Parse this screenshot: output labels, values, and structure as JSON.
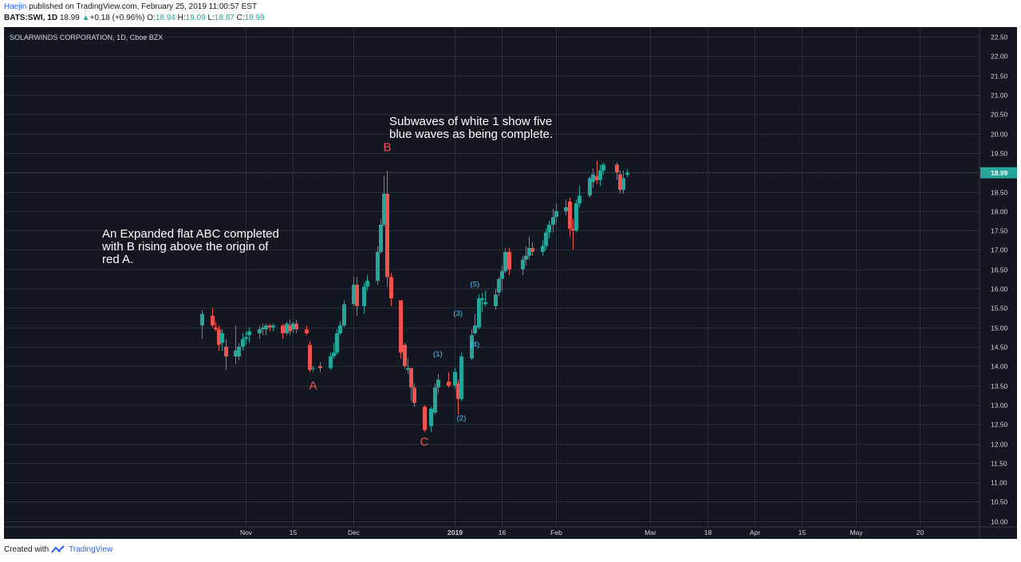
{
  "header": {
    "author": "Haejin",
    "published": "published on TradingView.com, February 25, 2019 11:00:57 EST",
    "symbol": "BATS:SWI, 1D",
    "last": "18.99",
    "change_arrow": "▲",
    "change": "+0.18 (+0.96%)",
    "o_label": "O:",
    "o_value": "18.94",
    "h_label": "H:",
    "h_value": "19.09",
    "l_label": "L:",
    "l_value": "18.87",
    "c_label": "C:",
    "c_value": "18.99"
  },
  "footer": {
    "created_with": "Created with",
    "brand": "TradingView"
  },
  "colors": {
    "background": "#131722",
    "up": "#26a69a",
    "down": "#ef5350",
    "grid": "#2a2e39",
    "wave_red": "#ef5350",
    "wave_blue": "#4fc3f7",
    "text": "#d1d4dc"
  },
  "chart_data": {
    "type": "candlestick",
    "title": "SOLARWINDS CORPORATION, 1D, Cboe BZX",
    "current_price": 18.99,
    "ylim": [
      9.85,
      22.75
    ],
    "y_ticks": [
      10.0,
      10.5,
      11.0,
      11.5,
      12.0,
      12.5,
      13.0,
      13.5,
      14.0,
      14.5,
      15.0,
      15.5,
      16.0,
      16.5,
      17.0,
      17.5,
      18.0,
      18.5,
      19.0,
      19.5,
      20.0,
      20.5,
      21.0,
      21.5,
      22.0,
      22.5
    ],
    "x_ticks": [
      {
        "label": "Nov",
        "date": "2018-11-01",
        "bold": false
      },
      {
        "label": "15",
        "date": "2018-11-15",
        "bold": false
      },
      {
        "label": "Dec",
        "date": "2018-12-03",
        "bold": false
      },
      {
        "label": "2019",
        "date": "2019-01-02",
        "bold": true
      },
      {
        "label": "16",
        "date": "2019-01-16",
        "bold": false
      },
      {
        "label": "Feb",
        "date": "2019-02-01",
        "bold": false
      },
      {
        "label": "Mar",
        "date": "2019-03-01",
        "bold": false
      },
      {
        "label": "18",
        "date": "2019-03-18",
        "bold": false
      },
      {
        "label": "Apr",
        "date": "2019-04-01",
        "bold": false
      },
      {
        "label": "15",
        "date": "2019-04-15",
        "bold": false
      },
      {
        "label": "May",
        "date": "2019-05-01",
        "bold": false
      },
      {
        "label": "20",
        "date": "2019-05-20",
        "bold": false
      }
    ],
    "candles": [
      {
        "date": "2018-10-19",
        "o": 15.05,
        "h": 15.45,
        "l": 14.7,
        "c": 15.35
      },
      {
        "date": "2018-10-22",
        "o": 15.3,
        "h": 15.5,
        "l": 15.0,
        "c": 15.05
      },
      {
        "date": "2018-10-23",
        "o": 15.0,
        "h": 15.15,
        "l": 14.9,
        "c": 14.95
      },
      {
        "date": "2018-10-24",
        "o": 14.95,
        "h": 15.05,
        "l": 14.4,
        "c": 14.55
      },
      {
        "date": "2018-10-25",
        "o": 14.6,
        "h": 14.95,
        "l": 14.4,
        "c": 14.85
      },
      {
        "date": "2018-10-26",
        "o": 14.5,
        "h": 14.7,
        "l": 13.9,
        "c": 14.25
      },
      {
        "date": "2018-10-29",
        "o": 14.25,
        "h": 15.05,
        "l": 14.05,
        "c": 14.4
      },
      {
        "date": "2018-10-30",
        "o": 14.25,
        "h": 14.6,
        "l": 14.15,
        "c": 14.5
      },
      {
        "date": "2018-10-31",
        "o": 14.5,
        "h": 14.85,
        "l": 14.4,
        "c": 14.7
      },
      {
        "date": "2018-11-01",
        "o": 14.7,
        "h": 14.9,
        "l": 14.55,
        "c": 14.75
      },
      {
        "date": "2018-11-02",
        "o": 14.8,
        "h": 15.0,
        "l": 14.6,
        "c": 14.9
      },
      {
        "date": "2018-11-05",
        "o": 14.85,
        "h": 15.05,
        "l": 14.7,
        "c": 14.95
      },
      {
        "date": "2018-11-06",
        "o": 14.95,
        "h": 15.1,
        "l": 14.8,
        "c": 15.0
      },
      {
        "date": "2018-11-07",
        "o": 14.95,
        "h": 15.1,
        "l": 14.8,
        "c": 15.05
      },
      {
        "date": "2018-11-08",
        "o": 15.05,
        "h": 15.1,
        "l": 14.9,
        "c": 15.0
      },
      {
        "date": "2018-11-09",
        "o": 15.0,
        "h": 15.1,
        "l": 14.9,
        "c": 15.05
      },
      {
        "date": "2018-11-12",
        "o": 15.05,
        "h": 15.1,
        "l": 14.7,
        "c": 14.85
      },
      {
        "date": "2018-11-13",
        "o": 14.85,
        "h": 15.15,
        "l": 14.8,
        "c": 15.1
      },
      {
        "date": "2018-11-14",
        "o": 15.05,
        "h": 15.2,
        "l": 14.8,
        "c": 14.9
      },
      {
        "date": "2018-11-15",
        "o": 14.95,
        "h": 15.15,
        "l": 14.85,
        "c": 15.1
      },
      {
        "date": "2018-11-16",
        "o": 15.1,
        "h": 15.2,
        "l": 14.85,
        "c": 14.95
      },
      {
        "date": "2018-11-19",
        "o": 14.95,
        "h": 15.05,
        "l": 14.8,
        "c": 14.85
      },
      {
        "date": "2018-11-20",
        "o": 14.55,
        "h": 14.65,
        "l": 13.85,
        "c": 13.9
      },
      {
        "date": "2018-11-21",
        "o": 13.95,
        "h": 14.0,
        "l": 13.85,
        "c": 13.95
      },
      {
        "date": "2018-11-23",
        "o": 14.0,
        "h": 14.1,
        "l": 13.85,
        "c": 13.95
      },
      {
        "date": "2018-11-26",
        "o": 13.95,
        "h": 14.35,
        "l": 13.9,
        "c": 14.25
      },
      {
        "date": "2018-11-27",
        "o": 14.25,
        "h": 14.6,
        "l": 14.2,
        "c": 14.35
      },
      {
        "date": "2018-11-28",
        "o": 14.35,
        "h": 14.95,
        "l": 14.3,
        "c": 14.85
      },
      {
        "date": "2018-11-29",
        "o": 14.85,
        "h": 15.15,
        "l": 14.8,
        "c": 15.05
      },
      {
        "date": "2018-11-30",
        "o": 15.05,
        "h": 15.7,
        "l": 15.0,
        "c": 15.6
      },
      {
        "date": "2018-12-03",
        "o": 15.6,
        "h": 16.3,
        "l": 15.55,
        "c": 16.1
      },
      {
        "date": "2018-12-04",
        "o": 16.1,
        "h": 16.3,
        "l": 15.3,
        "c": 15.55
      },
      {
        "date": "2018-12-06",
        "o": 15.55,
        "h": 16.15,
        "l": 15.35,
        "c": 16.05
      },
      {
        "date": "2018-12-07",
        "o": 16.05,
        "h": 16.35,
        "l": 15.95,
        "c": 16.2
      },
      {
        "date": "2018-12-10",
        "o": 16.2,
        "h": 17.1,
        "l": 16.1,
        "c": 16.95
      },
      {
        "date": "2018-12-11",
        "o": 16.95,
        "h": 17.8,
        "l": 16.9,
        "c": 17.65
      },
      {
        "date": "2018-12-12",
        "o": 17.65,
        "h": 18.9,
        "l": 17.6,
        "c": 18.45
      },
      {
        "date": "2018-12-13",
        "o": 18.45,
        "h": 19.05,
        "l": 16.05,
        "c": 16.3
      },
      {
        "date": "2018-12-14",
        "o": 16.3,
        "h": 16.4,
        "l": 15.55,
        "c": 15.75
      },
      {
        "date": "2018-12-17",
        "o": 15.7,
        "h": 15.7,
        "l": 14.2,
        "c": 14.35
      },
      {
        "date": "2018-12-18",
        "o": 14.55,
        "h": 14.6,
        "l": 13.95,
        "c": 14.0
      },
      {
        "date": "2018-12-19",
        "o": 13.9,
        "h": 14.2,
        "l": 13.8,
        "c": 13.95
      },
      {
        "date": "2018-12-20",
        "o": 13.95,
        "h": 13.95,
        "l": 13.1,
        "c": 13.45
      },
      {
        "date": "2018-12-21",
        "o": 13.45,
        "h": 13.55,
        "l": 12.95,
        "c": 13.05
      },
      {
        "date": "2018-12-24",
        "o": 12.95,
        "h": 13.0,
        "l": 12.3,
        "c": 12.35
      },
      {
        "date": "2018-12-26",
        "o": 12.45,
        "h": 12.95,
        "l": 12.3,
        "c": 12.9
      },
      {
        "date": "2018-12-27",
        "o": 12.8,
        "h": 13.55,
        "l": 12.75,
        "c": 13.45
      },
      {
        "date": "2018-12-28",
        "o": 13.45,
        "h": 13.8,
        "l": 13.3,
        "c": 13.65
      },
      {
        "date": "2018-12-31",
        "o": 13.6,
        "h": 13.85,
        "l": 13.45,
        "c": 13.5
      },
      {
        "date": "2019-01-02",
        "o": 13.5,
        "h": 13.95,
        "l": 13.4,
        "c": 13.85
      },
      {
        "date": "2019-01-03",
        "o": 13.55,
        "h": 13.65,
        "l": 12.75,
        "c": 13.15
      },
      {
        "date": "2019-01-04",
        "o": 13.15,
        "h": 14.35,
        "l": 13.1,
        "c": 14.25
      },
      {
        "date": "2019-01-07",
        "o": 14.2,
        "h": 14.95,
        "l": 14.15,
        "c": 14.8
      },
      {
        "date": "2019-01-08",
        "o": 14.85,
        "h": 15.35,
        "l": 14.8,
        "c": 15.05
      },
      {
        "date": "2019-01-09",
        "o": 15.0,
        "h": 15.85,
        "l": 14.95,
        "c": 15.75
      },
      {
        "date": "2019-01-10",
        "o": 15.7,
        "h": 15.9,
        "l": 15.4,
        "c": 15.75
      },
      {
        "date": "2019-01-11",
        "o": 15.6,
        "h": 15.95,
        "l": 15.55,
        "c": 15.65
      },
      {
        "date": "2019-01-14",
        "o": 15.55,
        "h": 16.0,
        "l": 15.45,
        "c": 15.85
      },
      {
        "date": "2019-01-15",
        "o": 15.9,
        "h": 16.3,
        "l": 15.8,
        "c": 16.25
      },
      {
        "date": "2019-01-16",
        "o": 16.25,
        "h": 16.6,
        "l": 15.95,
        "c": 16.45
      },
      {
        "date": "2019-01-17",
        "o": 16.45,
        "h": 17.05,
        "l": 16.4,
        "c": 16.95
      },
      {
        "date": "2019-01-18",
        "o": 16.95,
        "h": 17.05,
        "l": 16.35,
        "c": 16.5
      },
      {
        "date": "2019-01-22",
        "o": 16.5,
        "h": 16.85,
        "l": 16.35,
        "c": 16.75
      },
      {
        "date": "2019-01-23",
        "o": 16.75,
        "h": 17.1,
        "l": 16.6,
        "c": 16.85
      },
      {
        "date": "2019-01-24",
        "o": 16.85,
        "h": 17.35,
        "l": 16.75,
        "c": 17.05
      },
      {
        "date": "2019-01-25",
        "o": 17.05,
        "h": 17.2,
        "l": 16.85,
        "c": 16.95
      },
      {
        "date": "2019-01-28",
        "o": 16.95,
        "h": 17.25,
        "l": 16.85,
        "c": 17.1
      },
      {
        "date": "2019-01-29",
        "o": 17.1,
        "h": 17.55,
        "l": 17.0,
        "c": 17.45
      },
      {
        "date": "2019-01-30",
        "o": 17.45,
        "h": 17.75,
        "l": 17.3,
        "c": 17.65
      },
      {
        "date": "2019-01-31",
        "o": 17.65,
        "h": 18.05,
        "l": 17.45,
        "c": 17.85
      },
      {
        "date": "2019-02-01",
        "o": 17.85,
        "h": 18.2,
        "l": 17.7,
        "c": 18.0
      },
      {
        "date": "2019-02-04",
        "o": 18.0,
        "h": 18.3,
        "l": 17.9,
        "c": 18.1
      },
      {
        "date": "2019-02-05",
        "o": 18.25,
        "h": 18.35,
        "l": 17.35,
        "c": 17.55
      },
      {
        "date": "2019-02-06",
        "o": 17.55,
        "h": 17.8,
        "l": 17.0,
        "c": 17.5
      },
      {
        "date": "2019-02-07",
        "o": 17.5,
        "h": 18.3,
        "l": 17.45,
        "c": 18.2
      },
      {
        "date": "2019-02-08",
        "o": 18.2,
        "h": 18.65,
        "l": 18.1,
        "c": 18.4
      },
      {
        "date": "2019-02-11",
        "o": 18.4,
        "h": 18.9,
        "l": 18.35,
        "c": 18.85
      },
      {
        "date": "2019-02-12",
        "o": 18.75,
        "h": 19.1,
        "l": 18.6,
        "c": 18.95
      },
      {
        "date": "2019-02-13",
        "o": 18.9,
        "h": 19.3,
        "l": 18.7,
        "c": 18.8
      },
      {
        "date": "2019-02-14",
        "o": 18.8,
        "h": 19.2,
        "l": 18.65,
        "c": 19.05
      },
      {
        "date": "2019-02-15",
        "o": 19.05,
        "h": 19.25,
        "l": 18.95,
        "c": 19.2
      },
      {
        "date": "2019-02-19",
        "o": 19.2,
        "h": 19.25,
        "l": 18.8,
        "c": 19.0
      },
      {
        "date": "2019-02-20",
        "o": 18.95,
        "h": 19.05,
        "l": 18.45,
        "c": 18.55
      },
      {
        "date": "2019-02-21",
        "o": 18.55,
        "h": 19.05,
        "l": 18.45,
        "c": 18.85
      },
      {
        "date": "2019-02-22",
        "o": 18.94,
        "h": 19.09,
        "l": 18.87,
        "c": 18.99
      }
    ],
    "annotations": [
      {
        "text": "B",
        "date": "2018-12-13",
        "price": 19.55,
        "color": "red",
        "size": "large"
      },
      {
        "text": "A",
        "date": "2018-11-21",
        "price": 13.4,
        "color": "red",
        "size": "large"
      },
      {
        "text": "C",
        "date": "2018-12-24",
        "price": 11.95,
        "color": "red",
        "size": "large"
      },
      {
        "text": "(1)",
        "date": "2018-12-28",
        "price": 14.25,
        "color": "blue",
        "size": "small"
      },
      {
        "text": "(2)",
        "date": "2019-01-04",
        "price": 12.6,
        "color": "blue",
        "size": "small"
      },
      {
        "text": "(3)",
        "date": "2019-01-03",
        "price": 15.3,
        "color": "blue",
        "size": "small"
      },
      {
        "text": "(4)",
        "date": "2019-01-08",
        "price": 14.5,
        "color": "blue",
        "size": "small"
      },
      {
        "text": "(5)",
        "date": "2019-01-08",
        "price": 16.05,
        "color": "blue",
        "size": "small"
      }
    ],
    "notes": [
      {
        "lines": [
          "An Expanded flat ABC completed",
          "with B rising above the origin of",
          "red A."
        ]
      },
      {
        "lines": [
          "Subwaves of white 1 show five",
          "blue waves as being complete."
        ]
      }
    ]
  }
}
